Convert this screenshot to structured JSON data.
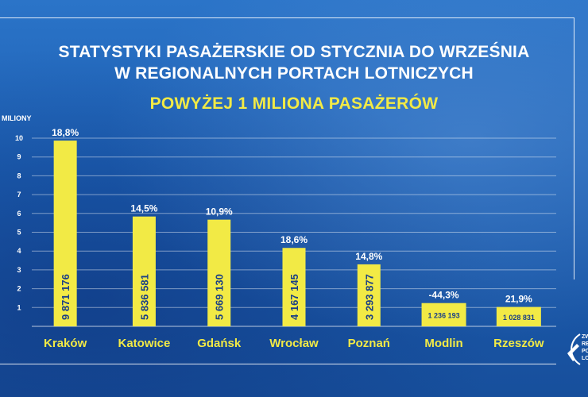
{
  "title": {
    "line1": "STATYSTYKI PASAŻERSKIE OD STYCZNIA DO WRZEŚNIA",
    "line2": "W REGIONALNYCH PORTACH LOTNICZYCH"
  },
  "subtitle": "POWYŻEJ 1 MILIONA PASAŻERÓW",
  "logo_text": [
    "ZW",
    "RE",
    "PO",
    "LO"
  ],
  "colors": {
    "bar": "#f2ea45",
    "accent_text": "#f2ea45",
    "background": "#1f63b8",
    "axis_text": "#ffffff"
  },
  "chart_data": {
    "type": "bar",
    "ylabel": "MILIONY",
    "ylim": [
      0,
      10
    ],
    "yticks": [
      "1",
      "2",
      "3",
      "4",
      "5",
      "6",
      "7",
      "8",
      "9",
      "10"
    ],
    "grid": true,
    "categories": [
      "Kraków",
      "Katowice",
      "Gdańsk",
      "Wrocław",
      "Poznań",
      "Modlin",
      "Rzeszów"
    ],
    "values": [
      9871176,
      5836581,
      5669130,
      4167145,
      3293877,
      1236193,
      1028831
    ],
    "value_labels": [
      "9 871 176",
      "5 836 581",
      "5 669 130",
      "4 167 145",
      "3 293 877",
      "1 236 193",
      "1 028 831"
    ],
    "change_labels": [
      "18,8%",
      "14,5%",
      "10,9%",
      "18,6%",
      "14,8%",
      "-44,3%",
      "21,9%"
    ]
  }
}
